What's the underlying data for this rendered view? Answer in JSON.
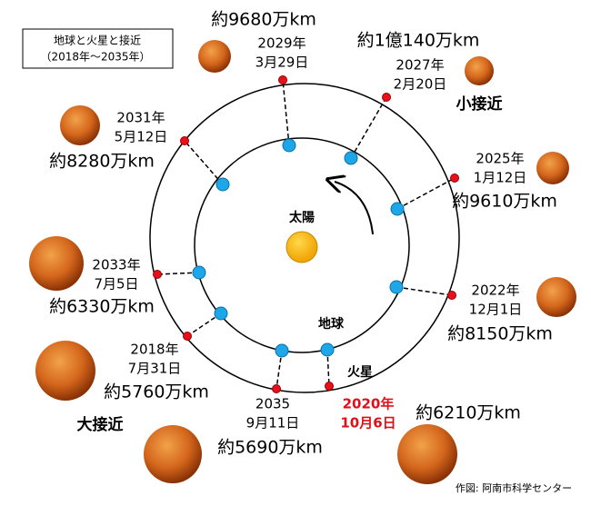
{
  "legend": {
    "title": "地球と火星と接近",
    "subtitle": "（2018年～2035年）"
  },
  "sun": "太陽",
  "earth": "地球",
  "mars": "火星",
  "approaches": [
    {
      "year": "2020年",
      "date": "10月6日",
      "distance": "約6210万km"
    },
    {
      "year": "2022年",
      "date": "12月1日",
      "distance": "約8150万km"
    },
    {
      "year": "2025年",
      "date": "1月12日",
      "distance": "約9610万km"
    },
    {
      "year": "2027年",
      "date": "2月20日",
      "distance": "約1億140万km"
    },
    {
      "year": "2029年",
      "date": "3月29日",
      "distance": "約9680万km"
    },
    {
      "year": "2031年",
      "date": "5月12日",
      "distance": "約8280万km"
    },
    {
      "year": "2033年",
      "date": "7月5日",
      "distance": "約6330万km"
    },
    {
      "year": "2018年",
      "date": "7月31日",
      "distance": "約5760万km"
    },
    {
      "year": "2035",
      "date": "9月11日",
      "distance": "約5690万km"
    }
  ],
  "small_approach": "小接近",
  "large_approach": "大接近",
  "credit": "作図: 阿南市科学センター"
}
